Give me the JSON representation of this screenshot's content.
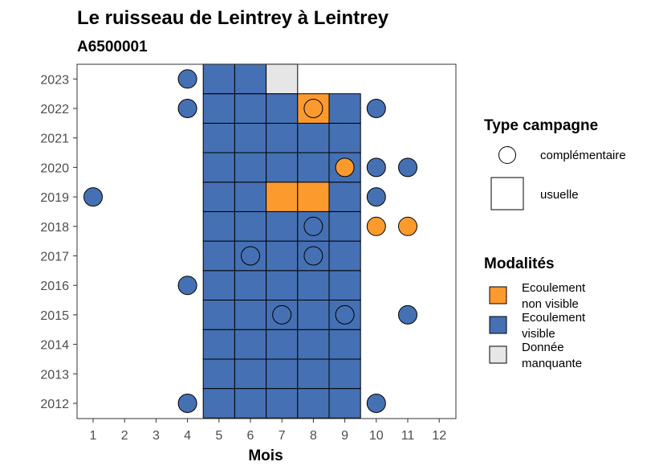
{
  "chart_data": {
    "type": "heatmap",
    "title": "Le ruisseau de Leintrey à Leintrey",
    "subtitle": "A6500001",
    "xlabel": "Mois",
    "ylabel": "",
    "x_ticks": [
      1,
      2,
      3,
      4,
      5,
      6,
      7,
      8,
      9,
      10,
      11,
      12
    ],
    "y_ticks": [
      2012,
      2013,
      2014,
      2015,
      2016,
      2017,
      2018,
      2019,
      2020,
      2021,
      2022,
      2023
    ],
    "grid": false,
    "colors": {
      "Ecoulement non visible": "#fd9a2e",
      "Ecoulement visible": "#4571b4",
      "Donnée manquante": "#e6e6e6"
    },
    "legend_campagne": {
      "title": "Type campagne",
      "items": [
        {
          "label": "complémentaire",
          "shape": "circle"
        },
        {
          "label": "usuelle",
          "shape": "square"
        }
      ]
    },
    "legend_modalites": {
      "title": "Modalités",
      "items": [
        {
          "key": "Ecoulement non visible",
          "lines": [
            "Ecoulement",
            "non visible"
          ]
        },
        {
          "key": "Ecoulement visible",
          "lines": [
            "Ecoulement",
            "visible"
          ]
        },
        {
          "key": "Donnée manquante",
          "lines": [
            "Donnée",
            "manquante"
          ]
        }
      ]
    },
    "usuelle": [
      {
        "year": 2012,
        "month": 5,
        "modalite": "Ecoulement visible"
      },
      {
        "year": 2012,
        "month": 6,
        "modalite": "Ecoulement visible"
      },
      {
        "year": 2012,
        "month": 7,
        "modalite": "Ecoulement visible"
      },
      {
        "year": 2012,
        "month": 8,
        "modalite": "Ecoulement visible"
      },
      {
        "year": 2012,
        "month": 9,
        "modalite": "Ecoulement visible"
      },
      {
        "year": 2013,
        "month": 5,
        "modalite": "Ecoulement visible"
      },
      {
        "year": 2013,
        "month": 6,
        "modalite": "Ecoulement visible"
      },
      {
        "year": 2013,
        "month": 7,
        "modalite": "Ecoulement visible"
      },
      {
        "year": 2013,
        "month": 8,
        "modalite": "Ecoulement visible"
      },
      {
        "year": 2013,
        "month": 9,
        "modalite": "Ecoulement visible"
      },
      {
        "year": 2014,
        "month": 5,
        "modalite": "Ecoulement visible"
      },
      {
        "year": 2014,
        "month": 6,
        "modalite": "Ecoulement visible"
      },
      {
        "year": 2014,
        "month": 7,
        "modalite": "Ecoulement visible"
      },
      {
        "year": 2014,
        "month": 8,
        "modalite": "Ecoulement visible"
      },
      {
        "year": 2014,
        "month": 9,
        "modalite": "Ecoulement visible"
      },
      {
        "year": 2015,
        "month": 5,
        "modalite": "Ecoulement visible"
      },
      {
        "year": 2015,
        "month": 6,
        "modalite": "Ecoulement visible"
      },
      {
        "year": 2015,
        "month": 7,
        "modalite": "Ecoulement visible"
      },
      {
        "year": 2015,
        "month": 8,
        "modalite": "Ecoulement visible"
      },
      {
        "year": 2015,
        "month": 9,
        "modalite": "Ecoulement visible"
      },
      {
        "year": 2016,
        "month": 5,
        "modalite": "Ecoulement visible"
      },
      {
        "year": 2016,
        "month": 6,
        "modalite": "Ecoulement visible"
      },
      {
        "year": 2016,
        "month": 7,
        "modalite": "Ecoulement visible"
      },
      {
        "year": 2016,
        "month": 8,
        "modalite": "Ecoulement visible"
      },
      {
        "year": 2016,
        "month": 9,
        "modalite": "Ecoulement visible"
      },
      {
        "year": 2017,
        "month": 5,
        "modalite": "Ecoulement visible"
      },
      {
        "year": 2017,
        "month": 6,
        "modalite": "Ecoulement visible"
      },
      {
        "year": 2017,
        "month": 7,
        "modalite": "Ecoulement visible"
      },
      {
        "year": 2017,
        "month": 8,
        "modalite": "Ecoulement visible"
      },
      {
        "year": 2017,
        "month": 9,
        "modalite": "Ecoulement visible"
      },
      {
        "year": 2018,
        "month": 5,
        "modalite": "Ecoulement visible"
      },
      {
        "year": 2018,
        "month": 6,
        "modalite": "Ecoulement visible"
      },
      {
        "year": 2018,
        "month": 7,
        "modalite": "Ecoulement visible"
      },
      {
        "year": 2018,
        "month": 8,
        "modalite": "Ecoulement visible"
      },
      {
        "year": 2018,
        "month": 9,
        "modalite": "Ecoulement visible"
      },
      {
        "year": 2019,
        "month": 5,
        "modalite": "Ecoulement visible"
      },
      {
        "year": 2019,
        "month": 6,
        "modalite": "Ecoulement visible"
      },
      {
        "year": 2019,
        "month": 7,
        "modalite": "Ecoulement non visible"
      },
      {
        "year": 2019,
        "month": 8,
        "modalite": "Ecoulement non visible"
      },
      {
        "year": 2019,
        "month": 9,
        "modalite": "Ecoulement visible"
      },
      {
        "year": 2020,
        "month": 5,
        "modalite": "Ecoulement visible"
      },
      {
        "year": 2020,
        "month": 6,
        "modalite": "Ecoulement visible"
      },
      {
        "year": 2020,
        "month": 7,
        "modalite": "Ecoulement visible"
      },
      {
        "year": 2020,
        "month": 8,
        "modalite": "Ecoulement visible"
      },
      {
        "year": 2020,
        "month": 9,
        "modalite": "Ecoulement visible"
      },
      {
        "year": 2021,
        "month": 5,
        "modalite": "Ecoulement visible"
      },
      {
        "year": 2021,
        "month": 6,
        "modalite": "Ecoulement visible"
      },
      {
        "year": 2021,
        "month": 7,
        "modalite": "Ecoulement visible"
      },
      {
        "year": 2021,
        "month": 8,
        "modalite": "Ecoulement visible"
      },
      {
        "year": 2021,
        "month": 9,
        "modalite": "Ecoulement visible"
      },
      {
        "year": 2022,
        "month": 5,
        "modalite": "Ecoulement visible"
      },
      {
        "year": 2022,
        "month": 6,
        "modalite": "Ecoulement visible"
      },
      {
        "year": 2022,
        "month": 7,
        "modalite": "Ecoulement visible"
      },
      {
        "year": 2022,
        "month": 8,
        "modalite": "Ecoulement non visible"
      },
      {
        "year": 2022,
        "month": 9,
        "modalite": "Ecoulement visible"
      },
      {
        "year": 2023,
        "month": 5,
        "modalite": "Ecoulement visible"
      },
      {
        "year": 2023,
        "month": 6,
        "modalite": "Ecoulement visible"
      },
      {
        "year": 2023,
        "month": 7,
        "modalite": "Donnée manquante"
      }
    ],
    "complementaire": [
      {
        "year": 2012,
        "month": 4,
        "modalite": "Ecoulement visible"
      },
      {
        "year": 2012,
        "month": 10,
        "modalite": "Ecoulement visible"
      },
      {
        "year": 2015,
        "month": 7,
        "modalite": "Ecoulement visible"
      },
      {
        "year": 2015,
        "month": 9,
        "modalite": "Ecoulement visible"
      },
      {
        "year": 2015,
        "month": 11,
        "modalite": "Ecoulement visible"
      },
      {
        "year": 2016,
        "month": 4,
        "modalite": "Ecoulement visible"
      },
      {
        "year": 2017,
        "month": 6,
        "modalite": "Ecoulement visible"
      },
      {
        "year": 2017,
        "month": 8,
        "modalite": "Ecoulement visible"
      },
      {
        "year": 2018,
        "month": 8,
        "modalite": "Ecoulement visible"
      },
      {
        "year": 2018,
        "month": 10,
        "modalite": "Ecoulement non visible"
      },
      {
        "year": 2018,
        "month": 11,
        "modalite": "Ecoulement non visible"
      },
      {
        "year": 2019,
        "month": 1,
        "modalite": "Ecoulement visible"
      },
      {
        "year": 2019,
        "month": 10,
        "modalite": "Ecoulement visible"
      },
      {
        "year": 2020,
        "month": 9,
        "modalite": "Ecoulement non visible"
      },
      {
        "year": 2020,
        "month": 10,
        "modalite": "Ecoulement visible"
      },
      {
        "year": 2020,
        "month": 11,
        "modalite": "Ecoulement visible"
      },
      {
        "year": 2022,
        "month": 4,
        "modalite": "Ecoulement visible"
      },
      {
        "year": 2022,
        "month": 8,
        "modalite": "Ecoulement non visible"
      },
      {
        "year": 2022,
        "month": 10,
        "modalite": "Ecoulement visible"
      },
      {
        "year": 2023,
        "month": 4,
        "modalite": "Ecoulement visible"
      }
    ]
  }
}
